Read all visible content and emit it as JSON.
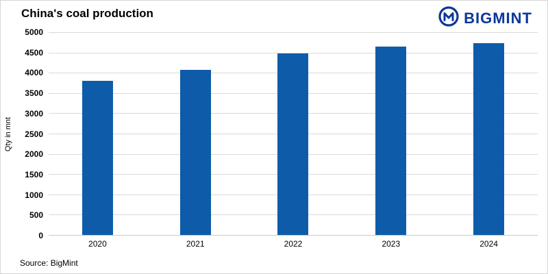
{
  "header": {
    "title": "China's coal production"
  },
  "brand": {
    "name": "BIGMINT",
    "logo_icon": "bigmint-circle-m-icon"
  },
  "footer": {
    "source": "Source: BigMint"
  },
  "colors": {
    "bar": "#0e5ca9",
    "brand": "#0b379b",
    "gridline": "#d9d9d9",
    "axis": "#c9c9c9",
    "text": "#000000"
  },
  "chart_data": {
    "type": "bar",
    "title": "China's coal production",
    "categories": [
      "2020",
      "2021",
      "2022",
      "2023",
      "2024"
    ],
    "values": [
      3800,
      4070,
      4480,
      4650,
      4730
    ],
    "xlabel": "",
    "ylabel": "Qty in mnt",
    "ylim": [
      0,
      5000
    ],
    "ytick_step": 500,
    "grid": true,
    "legend": false,
    "source": "Source: BigMint"
  }
}
